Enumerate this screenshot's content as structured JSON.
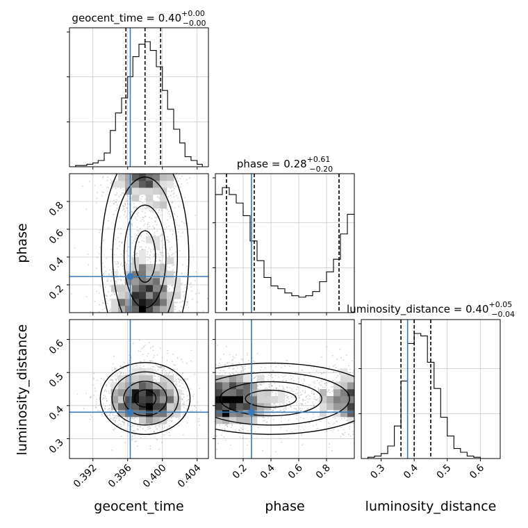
{
  "chart_data": {
    "type": "corner",
    "parameters": [
      "geocent_time",
      "phase",
      "luminosity_distance"
    ],
    "panel_titles": [
      {
        "name": "geocent_time",
        "median": "0.40",
        "plus": "+0.00",
        "minus": "−0.00"
      },
      {
        "name": "phase",
        "median": "0.28",
        "plus": "+0.61",
        "minus": "−0.20"
      },
      {
        "name": "luminosity_distance",
        "median": "0.40",
        "plus": "+0.05",
        "minus": "−0.04"
      }
    ],
    "injected_values": {
      "geocent_time": 0.3963,
      "phase": 0.26,
      "luminosity_distance": 0.38
    },
    "axes": {
      "geocent_time": {
        "range": [
          0.3893,
          0.4053
        ],
        "ticks": [
          0.392,
          0.396,
          0.4,
          0.404
        ],
        "tick_labels": [
          "0.392",
          "0.396",
          "0.400",
          "0.404"
        ]
      },
      "phase": {
        "range": [
          0.0,
          1.0
        ],
        "ticks": [
          0.2,
          0.4,
          0.6,
          0.8
        ],
        "tick_labels": [
          "0.2",
          "0.4",
          "0.6",
          "0.8"
        ]
      },
      "luminosity_distance": {
        "range": [
          0.24,
          0.66
        ],
        "ticks": [
          0.3,
          0.4,
          0.5,
          0.6
        ],
        "tick_labels": [
          "0.3",
          "0.4",
          "0.5",
          "0.6"
        ]
      }
    },
    "histograms": {
      "geocent_time": {
        "bin_edges": [
          0.3893,
          0.39,
          0.3906,
          0.3913,
          0.392,
          0.3926,
          0.3933,
          0.394,
          0.3946,
          0.3953,
          0.396,
          0.3966,
          0.3973,
          0.398,
          0.3986,
          0.3993,
          0.4,
          0.4006,
          0.4013,
          0.402,
          0.4026,
          0.4033,
          0.404,
          0.4046,
          0.4053
        ],
        "heights": [
          0.0,
          0.01,
          0.01,
          0.02,
          0.03,
          0.05,
          0.11,
          0.29,
          0.43,
          0.55,
          0.72,
          0.88,
          0.98,
          1.0,
          0.93,
          0.8,
          0.61,
          0.46,
          0.3,
          0.19,
          0.08,
          0.05,
          0.02,
          0.0
        ],
        "quantiles": [
          0.3958,
          0.398,
          0.3998
        ]
      },
      "phase": {
        "bin_edges": [
          0.0,
          0.05,
          0.1,
          0.15,
          0.2,
          0.25,
          0.3,
          0.35,
          0.4,
          0.45,
          0.5,
          0.55,
          0.6,
          0.65,
          0.7,
          0.75,
          0.8,
          0.85,
          0.9,
          0.95,
          1.0
        ],
        "heights": [
          0.84,
          0.89,
          0.84,
          0.78,
          0.69,
          0.51,
          0.37,
          0.25,
          0.19,
          0.17,
          0.14,
          0.12,
          0.11,
          0.12,
          0.15,
          0.22,
          0.29,
          0.38,
          0.56,
          0.7
        ],
        "quantiles": [
          0.08,
          0.28,
          0.89
        ]
      },
      "luminosity_distance": {
        "bin_edges": [
          0.24,
          0.26,
          0.28,
          0.3,
          0.32,
          0.34,
          0.36,
          0.38,
          0.4,
          0.42,
          0.44,
          0.46,
          0.48,
          0.5,
          0.52,
          0.54,
          0.56,
          0.58,
          0.6,
          0.62,
          0.64,
          0.66
        ],
        "heights": [
          0.0,
          0.01,
          0.02,
          0.04,
          0.1,
          0.26,
          0.62,
          0.92,
          1.0,
          0.98,
          0.77,
          0.56,
          0.33,
          0.18,
          0.08,
          0.05,
          0.02,
          0.01,
          0.0,
          0.0,
          0.0
        ],
        "quantiles": [
          0.36,
          0.4,
          0.45
        ]
      }
    },
    "xlabels": [
      "geocent_time",
      "phase",
      "luminosity_distance"
    ],
    "ylabels": [
      "phase",
      "luminosity_distance"
    ],
    "grid": true,
    "colors": {
      "truth": "#3a7ab8",
      "contour": "#000000",
      "hist": "#000000",
      "points": "#9a9a9a"
    }
  }
}
